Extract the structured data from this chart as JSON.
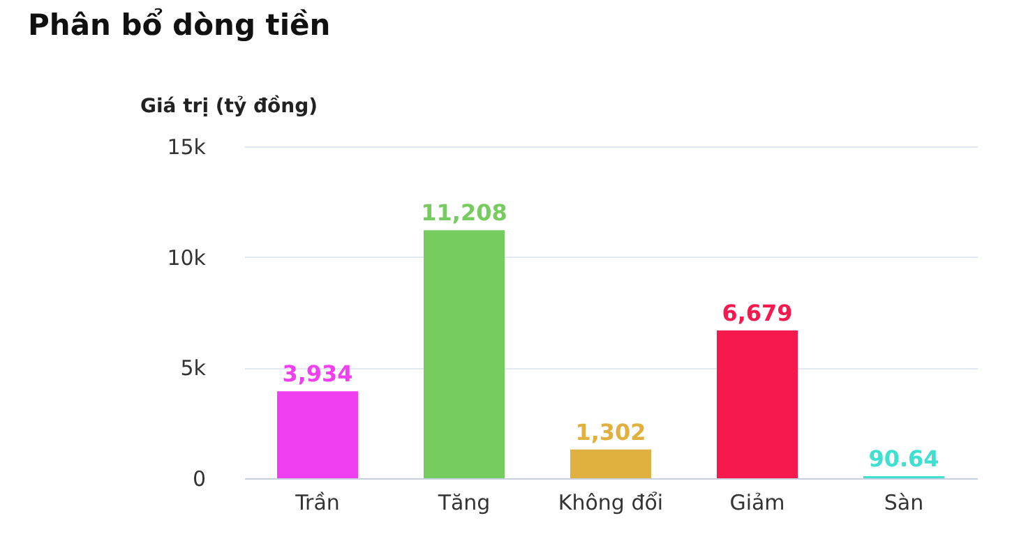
{
  "chart_data": {
    "type": "bar",
    "title": "Phân bổ dòng tiền",
    "ylabel": "Giá trị (tỷ đồng)",
    "categories": [
      "Trần",
      "Tăng",
      "Không đổi",
      "Giảm",
      "Sàn"
    ],
    "values": [
      3934,
      11208,
      1302,
      6679,
      90.64
    ],
    "colors": [
      "#f03ff0",
      "#76cc5f",
      "#e0b040",
      "#f5194e",
      "#40e0d0"
    ],
    "ylim": [
      0,
      15000
    ],
    "yticks": [
      0,
      {
        "value": 5000,
        "label": "5k"
      },
      {
        "value": 10000,
        "label": "10k"
      },
      {
        "value": 15000,
        "label": "15k"
      }
    ],
    "value_labels": [
      "3,934",
      "11,208",
      "1,302",
      "6,679",
      "90.64"
    ],
    "grid": "y"
  }
}
